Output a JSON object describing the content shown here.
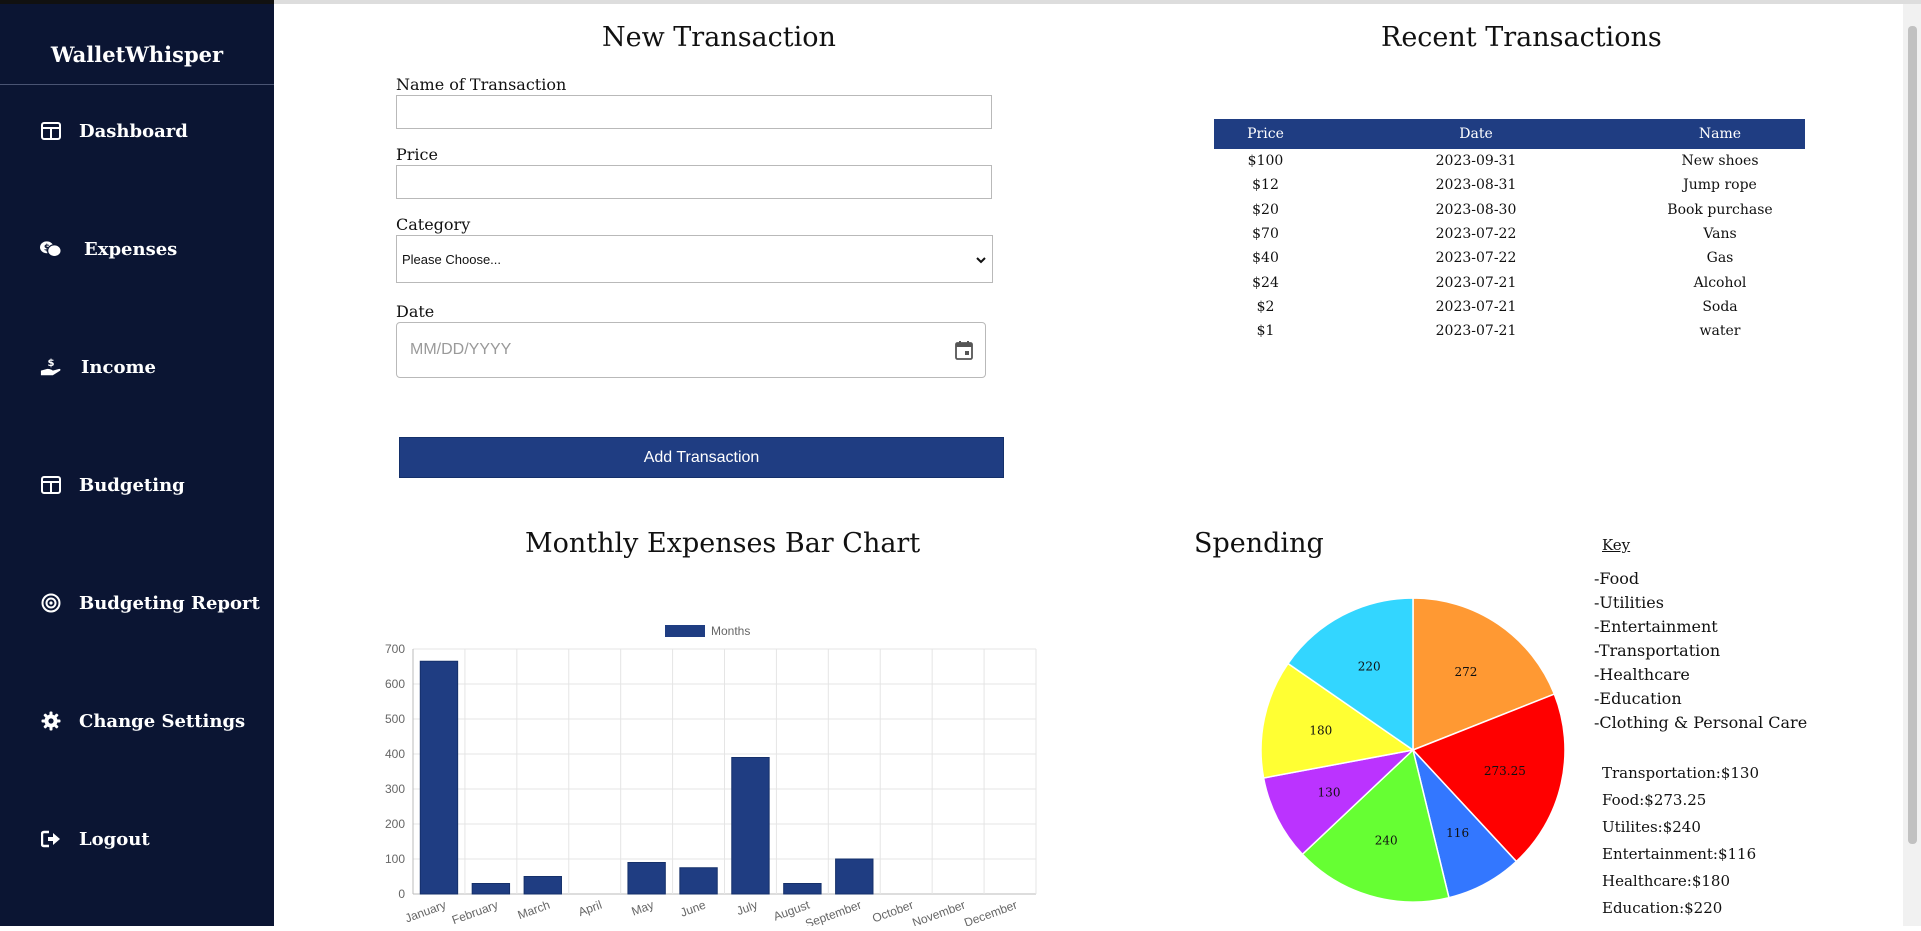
{
  "app": {
    "brand": "WalletWhisper"
  },
  "sidebar": {
    "items": [
      {
        "label": "Dashboard",
        "icon": "table-icon"
      },
      {
        "label": "Expenses",
        "icon": "coins-chat-icon"
      },
      {
        "label": "Income",
        "icon": "hand-dollar-icon"
      },
      {
        "label": "Budgeting",
        "icon": "table-icon"
      },
      {
        "label": "Budgeting Report",
        "icon": "target-icon"
      },
      {
        "label": "Change Settings",
        "icon": "gear-icon"
      },
      {
        "label": "Logout",
        "icon": "logout-icon"
      }
    ]
  },
  "form": {
    "title": "New Transaction",
    "name_label": "Name of Transaction",
    "name_value": "",
    "price_label": "Price",
    "price_value": "",
    "category_label": "Category",
    "category_selected": "Please Choose...",
    "date_label": "Date",
    "date_placeholder": "MM/DD/YYYY",
    "submit_label": "Add Transaction"
  },
  "recent": {
    "title": "Recent Transactions",
    "columns": [
      "Price",
      "Date",
      "Name"
    ],
    "rows": [
      [
        "$100",
        "2023-09-31",
        "New shoes"
      ],
      [
        "$12",
        "2023-08-31",
        "Jump rope"
      ],
      [
        "$20",
        "2023-08-30",
        "Book purchase"
      ],
      [
        "$70",
        "2023-07-22",
        "Vans"
      ],
      [
        "$40",
        "2023-07-22",
        "Gas"
      ],
      [
        "$24",
        "2023-07-21",
        "Alcohol"
      ],
      [
        "$2",
        "2023-07-21",
        "Soda"
      ],
      [
        "$1",
        "2023-07-21",
        "water"
      ]
    ]
  },
  "bar_title": "Monthly Expenses Bar Chart",
  "spending": {
    "title": "Spending",
    "key_title": "Key",
    "key_items": [
      "-Food",
      "-Utilities",
      "-Entertainment",
      "-Transportation",
      "-Healthcare",
      "-Education",
      "-Clothing & Personal Care"
    ],
    "totals": [
      "Transportation:$130",
      "Food:$273.25",
      "Utilites:$240",
      "Entertainment:$116",
      "Healthcare:$180",
      "Education:$220"
    ]
  },
  "colors": {
    "sidebar": "#0b1533",
    "accent": "#1f3d82"
  },
  "chart_data": [
    {
      "type": "bar",
      "title": "",
      "legend": [
        "Months"
      ],
      "legend_position": "top",
      "grid": true,
      "categories": [
        "January",
        "February",
        "March",
        "April",
        "May",
        "June",
        "July",
        "August",
        "September",
        "October",
        "November",
        "December"
      ],
      "tick_labels_shown": [
        "January",
        "February",
        "March",
        "April",
        "May",
        "June",
        "July",
        "August",
        "September",
        "October",
        "November",
        "December"
      ],
      "series": [
        {
          "name": "Months",
          "color": "#1f3d82",
          "values": [
            665,
            30,
            50,
            0,
            90,
            75,
            390,
            30,
            100,
            0,
            0,
            0
          ]
        }
      ],
      "ylim": [
        0,
        700
      ],
      "yticks": [
        0,
        100,
        200,
        300,
        400,
        500,
        600,
        700
      ]
    },
    {
      "type": "pie",
      "title": "Spending",
      "slices": [
        {
          "label": "272",
          "value": 272,
          "color": "#ff9933"
        },
        {
          "label": "273.25",
          "value": 273.25,
          "color": "#ff0000"
        },
        {
          "label": "116",
          "value": 116,
          "color": "#3377ff"
        },
        {
          "label": "240",
          "value": 240,
          "color": "#66ff33"
        },
        {
          "label": "130",
          "value": 130,
          "color": "#bb33ff"
        },
        {
          "label": "180",
          "value": 180,
          "color": "#ffff33"
        },
        {
          "label": "220",
          "value": 220,
          "color": "#33d6ff"
        }
      ]
    }
  ]
}
